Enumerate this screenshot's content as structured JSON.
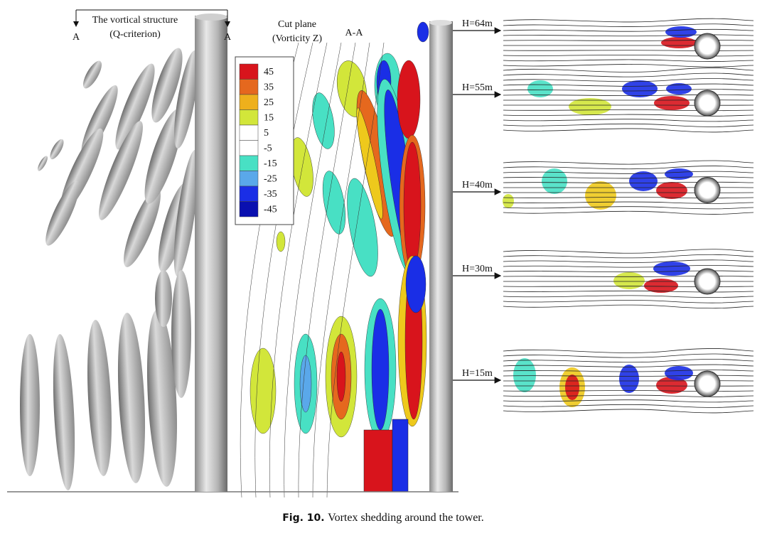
{
  "left_panel": {
    "title": [
      "The vortical structure",
      "(Q-criterion)"
    ],
    "section_marks": [
      "A",
      "A"
    ]
  },
  "middle_panel": {
    "title": [
      "Cut plane",
      "(Vorticity Z)"
    ],
    "section_label": "A-A",
    "legend": {
      "levels": [
        45,
        35,
        25,
        15,
        5,
        -5,
        -15,
        -25,
        -35,
        -45
      ]
    }
  },
  "right_panel": {
    "heights": [
      "H=64m",
      "H=55m",
      "H=40m",
      "H=30m",
      "H=15m"
    ]
  },
  "caption": {
    "label": "Fig. 10.",
    "text": "Vortex shedding around the tower."
  }
}
